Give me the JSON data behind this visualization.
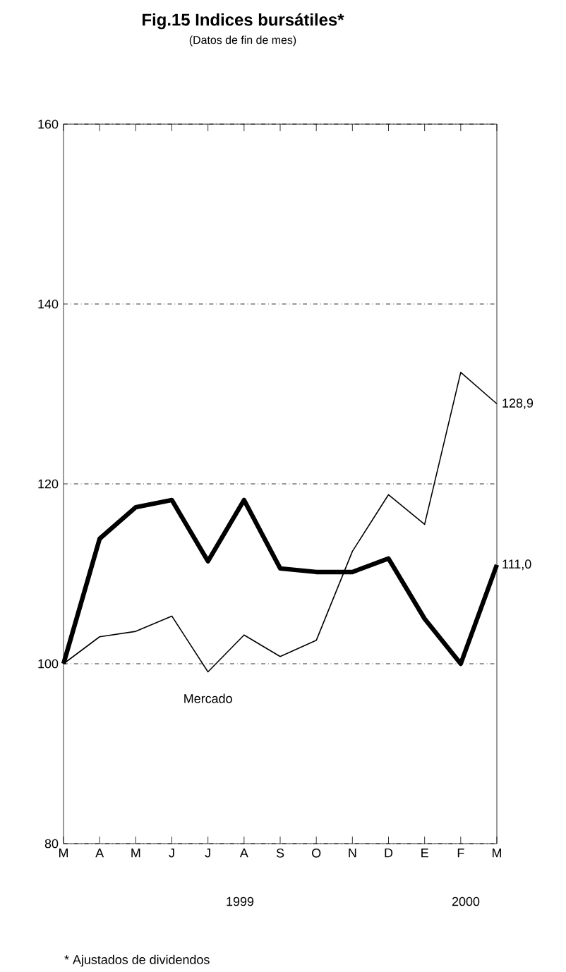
{
  "chart_data": {
    "type": "line",
    "title": "Fig.15 Indices bursátiles*",
    "subtitle": "(Datos de fin de mes)",
    "categories": [
      "M",
      "A",
      "M",
      "J",
      "J",
      "A",
      "S",
      "O",
      "N",
      "D",
      "E",
      "F",
      "M"
    ],
    "series": [
      {
        "color": "#000000",
        "values": [
          100,
          113.9,
          117.4,
          118.2,
          111.4,
          118.2,
          110.6,
          110.2,
          110.2,
          111.7,
          105,
          100,
          111.0
        ],
        "value_labels": [
          null,
          null,
          null,
          null,
          null,
          null,
          null,
          null,
          null,
          null,
          null,
          null,
          "111,0"
        ]
      },
      {
        "name": "Mercado",
        "color": "#000000",
        "values": [
          100,
          103.0,
          103.6,
          105.3,
          99.1,
          103.2,
          100.8,
          102.6,
          112.5,
          118.8,
          115.5,
          132.4,
          128.9
        ],
        "value_labels": [
          null,
          null,
          null,
          null,
          null,
          null,
          null,
          null,
          null,
          null,
          null,
          null,
          "128,9"
        ]
      }
    ],
    "ylim": [
      80,
      160
    ],
    "yticks": [
      80,
      100,
      120,
      140,
      160
    ],
    "grid": "y",
    "annotations": [
      "1999",
      "2000",
      "* Ajustados de dividendos"
    ]
  }
}
